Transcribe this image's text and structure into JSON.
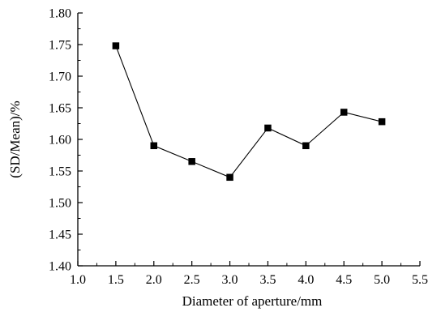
{
  "chart_data": {
    "type": "line",
    "title": "",
    "xlabel": "Diameter of aperture/mm",
    "ylabel": "(SD/Mean)/%",
    "xlim": [
      1.0,
      5.5
    ],
    "ylim": [
      1.4,
      1.8
    ],
    "x_ticks": [
      "1.0",
      "1.5",
      "2.0",
      "2.5",
      "3.0",
      "3.5",
      "4.0",
      "4.5",
      "5.0",
      "5.5"
    ],
    "y_ticks": [
      "1.40",
      "1.45",
      "1.50",
      "1.55",
      "1.60",
      "1.65",
      "1.70",
      "1.75",
      "1.80"
    ],
    "grid": false,
    "marker": "square",
    "line_color": "#000000",
    "marker_color": "#000000",
    "series": [
      {
        "x": [
          1.5,
          2.0,
          2.5,
          3.0,
          3.5,
          4.0,
          4.5,
          5.0
        ],
        "values": [
          1.748,
          1.59,
          1.565,
          1.54,
          1.618,
          1.59,
          1.643,
          1.628
        ]
      }
    ]
  }
}
